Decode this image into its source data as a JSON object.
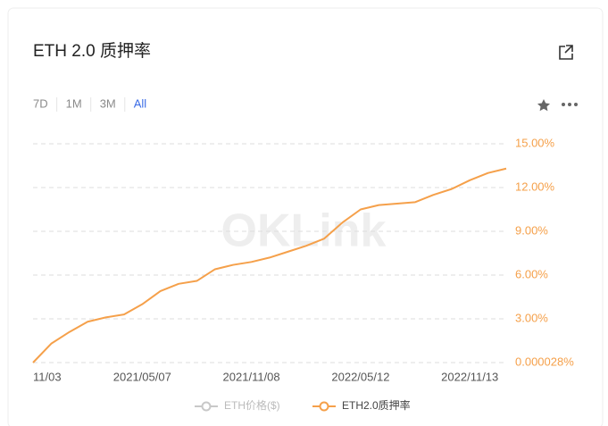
{
  "header": {
    "title": "ETH 2.0 质押率"
  },
  "tabs": [
    "7D",
    "1M",
    "3M",
    "All"
  ],
  "active_tab": 3,
  "watermark": "OKLink",
  "legend": [
    {
      "name": "ETH价格($)",
      "color": "#c8c8c8"
    },
    {
      "name": "ETH2.0质押率",
      "color": "#f5a04a"
    }
  ],
  "chart_data": {
    "type": "line",
    "categories": [
      "11/03",
      null,
      null,
      null,
      null,
      null,
      "2021/05/07",
      null,
      null,
      null,
      null,
      null,
      "2021/11/08",
      null,
      null,
      null,
      null,
      null,
      "2022/05/12",
      null,
      null,
      null,
      null,
      null,
      "2022/11/13",
      null,
      null
    ],
    "series": [
      {
        "name": "ETH2.0质押率",
        "color": "#f5a04a",
        "values": [
          2.8e-05,
          1.3,
          2.1,
          2.8,
          3.1,
          3.3,
          4.0,
          4.9,
          5.4,
          5.6,
          6.4,
          6.7,
          6.9,
          7.2,
          7.6,
          8.0,
          8.5,
          9.6,
          10.5,
          10.8,
          10.9,
          11.0,
          11.5,
          11.9,
          12.5,
          13.0,
          13.3
        ]
      }
    ],
    "ylim": [
      2.8e-05,
      15
    ],
    "yticks": [
      {
        "value": 2.8e-05,
        "label": "0.000028%"
      },
      {
        "value": 3,
        "label": "3.00%"
      },
      {
        "value": 6,
        "label": "6.00%"
      },
      {
        "value": 9,
        "label": "9.00%"
      },
      {
        "value": 12,
        "label": "12.00%"
      },
      {
        "value": 15,
        "label": "15.00%"
      }
    ],
    "grid": true,
    "y_axis_side": "right"
  }
}
